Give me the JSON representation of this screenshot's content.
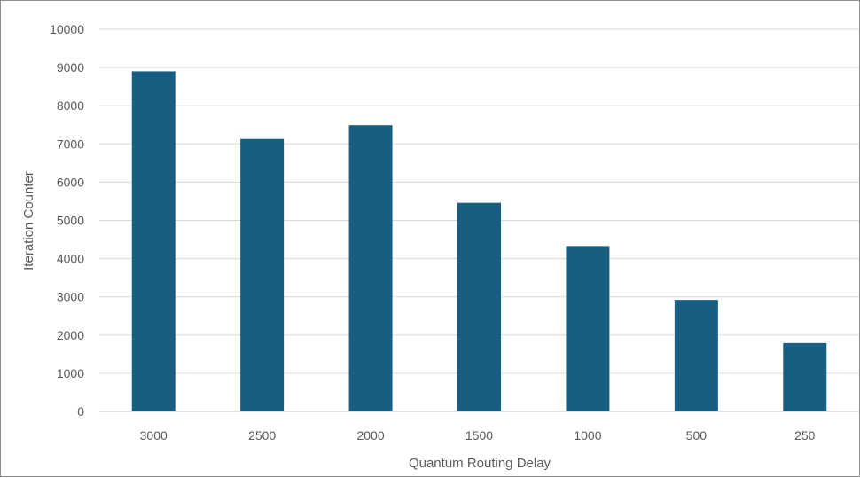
{
  "chart_data": {
    "type": "bar",
    "title": "",
    "xlabel": "Quantum Routing Delay",
    "ylabel": "Iteration Counter",
    "categories": [
      "3000",
      "2500",
      "2000",
      "1500",
      "1000",
      "500",
      "250"
    ],
    "values": [
      8900,
      7130,
      7490,
      5460,
      4330,
      2920,
      1790
    ],
    "ylim": [
      0,
      10000
    ],
    "yticks": [
      "0",
      "1000",
      "2000",
      "3000",
      "4000",
      "5000",
      "6000",
      "7000",
      "8000",
      "9000",
      "10000"
    ],
    "grid": true,
    "legend": "none",
    "bar_color": "#175e81",
    "grid_color": "#d9d9d9",
    "axis_color": "#bfbfbf"
  }
}
